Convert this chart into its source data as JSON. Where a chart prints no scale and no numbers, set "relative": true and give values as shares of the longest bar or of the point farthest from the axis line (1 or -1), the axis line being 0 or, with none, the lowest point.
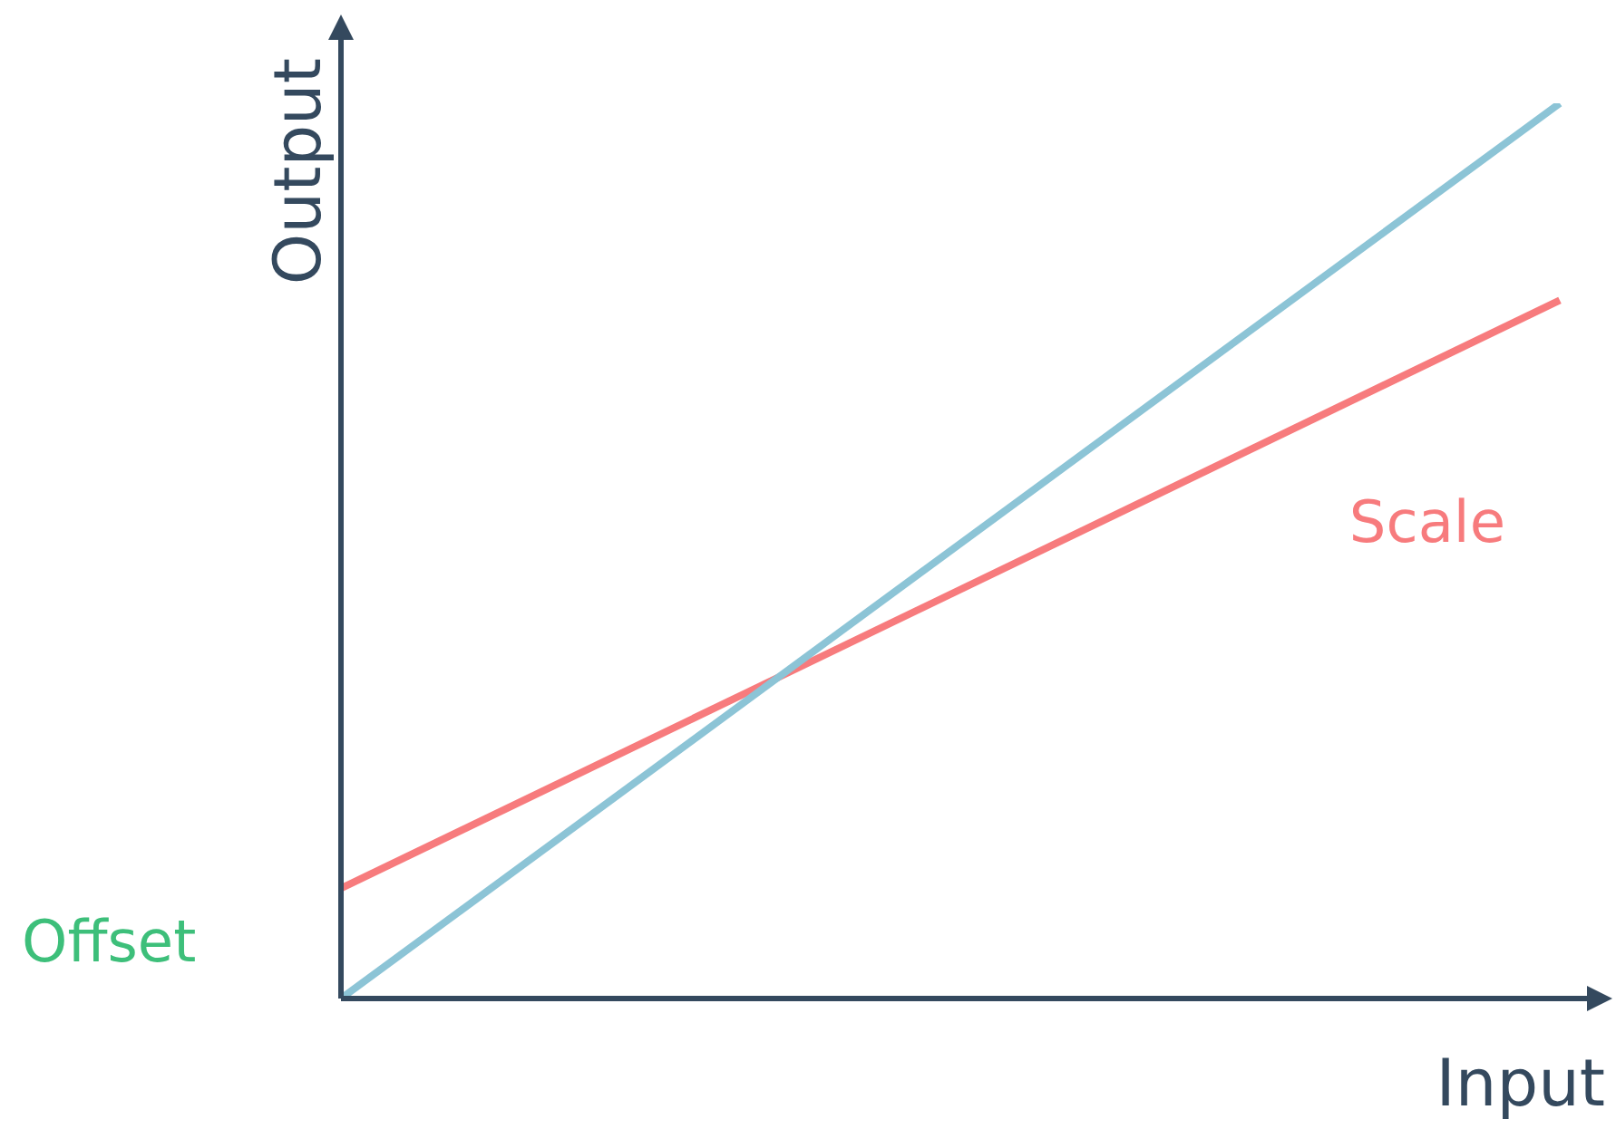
{
  "chart_data": {
    "type": "line",
    "relative": true,
    "xlabel": "Input",
    "ylabel": "Output",
    "categories": [
      null,
      null
    ],
    "series": [
      {
        "color": "#8cc4d6",
        "values": [
          0,
          1
        ]
      },
      {
        "name": "Scale",
        "color": "#f77b7d",
        "values": [
          0.123,
          0.78
        ]
      }
    ],
    "annotations": [
      "Offset"
    ],
    "legend": false,
    "marker": "none",
    "line_style": "solid",
    "tick_labels": false
  }
}
